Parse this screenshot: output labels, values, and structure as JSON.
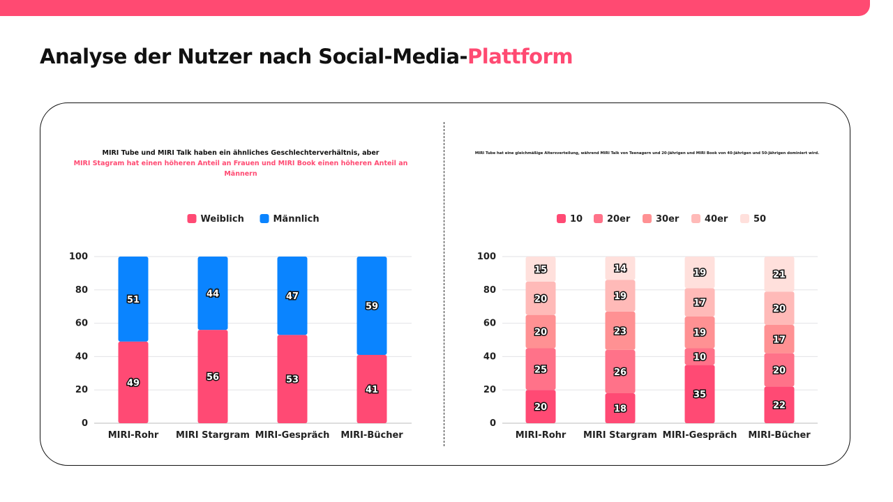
{
  "header": {
    "title_main": "Analyse der Nutzer nach Social-Media-",
    "title_highlight": "Plattform",
    "accent": "#ff4a72"
  },
  "chart_data": [
    {
      "type": "bar",
      "stacked": true,
      "subtitle_line1": "MIRI Tube und MIRI Talk haben ein ähnliches Geschlechterverhältnis, aber",
      "subtitle_line2": "MIRI Stagram hat einen höheren Anteil an Frauen und MIRI Book einen höheren Anteil an Männern",
      "categories": [
        "MIRI-Rohr",
        "MIRI Stargram",
        "MIRI-Gespräch",
        "MIRI-Bücher"
      ],
      "series": [
        {
          "name": "Weiblich",
          "color": "#ff4a74",
          "values": [
            49,
            56,
            53,
            41
          ]
        },
        {
          "name": "Männlich",
          "color": "#0a84ff",
          "values": [
            51,
            44,
            47,
            59
          ]
        }
      ],
      "ylim": [
        0,
        100
      ],
      "yticks": [
        0,
        20,
        40,
        60,
        80,
        100
      ],
      "grid": true,
      "legend": "top-center"
    },
    {
      "type": "bar",
      "stacked": true,
      "subtitle": "MIRI Tube hat eine gleichmäßige Altersverteilung, während MIRI Talk von Teenagern und 20-Jährigen und MIRI Book von 40-Jährigen und 50-Jährigen dominiert wird.",
      "categories": [
        "MIRI-Rohr",
        "MIRI Stargram",
        "MIRI-Gespräch",
        "MIRI-Bücher"
      ],
      "series": [
        {
          "name": "10",
          "color": "#ff4a74",
          "values": [
            20,
            18,
            35,
            22
          ]
        },
        {
          "name": "20er",
          "color": "#ff7289",
          "values": [
            25,
            26,
            10,
            20
          ]
        },
        {
          "name": "30er",
          "color": "#ff9193",
          "values": [
            20,
            23,
            19,
            17
          ]
        },
        {
          "name": "40er",
          "color": "#ffbab8",
          "values": [
            20,
            19,
            17,
            20
          ]
        },
        {
          "name": "50",
          "color": "#ffe0dc",
          "values": [
            15,
            14,
            19,
            21
          ]
        }
      ],
      "ylim": [
        0,
        100
      ],
      "yticks": [
        0,
        20,
        40,
        60,
        80,
        100
      ],
      "grid": true,
      "legend": "top-center"
    }
  ]
}
